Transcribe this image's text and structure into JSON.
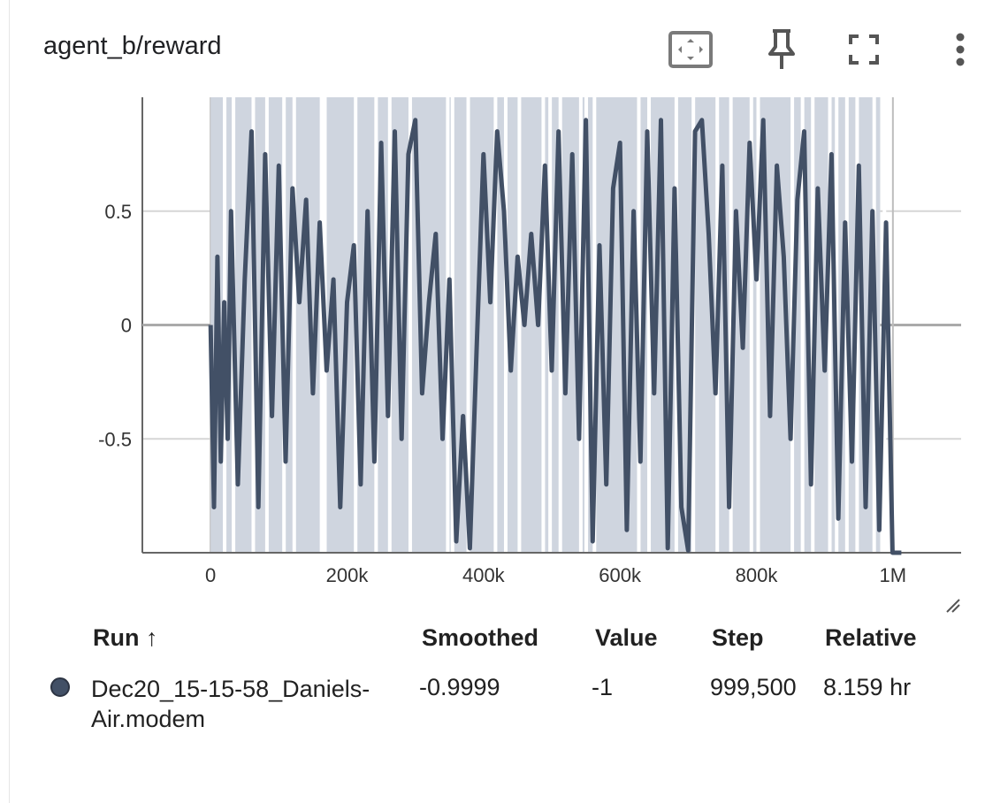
{
  "card": {
    "title": "agent_b/reward",
    "toolbar": {
      "fit_domain": "fit-domain-icon",
      "pin": "pin-icon",
      "fullscreen": "fullscreen-icon",
      "more": "more-vert-icon"
    }
  },
  "chart_data": {
    "type": "line",
    "title": "agent_b/reward",
    "xlabel": "",
    "ylabel": "",
    "xlim": [
      -100000,
      1100000
    ],
    "ylim": [
      -1,
      1
    ],
    "x_ticks": [
      "0",
      "200k",
      "400k",
      "600k",
      "800k",
      "1M"
    ],
    "x_tick_values": [
      0,
      200000,
      400000,
      600000,
      800000,
      1000000
    ],
    "y_ticks": [
      "0.5",
      "0",
      "-0.5"
    ],
    "y_tick_values": [
      0.5,
      0,
      -0.5
    ],
    "grid": true,
    "colors": {
      "line": "#425066",
      "band": "#cfd5df"
    },
    "series": [
      {
        "name": "Dec20_15-15-58_Daniels-Air.modem",
        "x": [
          0,
          5000,
          10000,
          15000,
          20000,
          25000,
          30000,
          40000,
          50000,
          60000,
          70000,
          80000,
          90000,
          100000,
          110000,
          120000,
          130000,
          140000,
          150000,
          160000,
          170000,
          180000,
          190000,
          200000,
          210000,
          220000,
          230000,
          240000,
          250000,
          260000,
          270000,
          280000,
          290000,
          300000,
          310000,
          320000,
          330000,
          340000,
          350000,
          360000,
          370000,
          380000,
          390000,
          400000,
          410000,
          420000,
          430000,
          440000,
          450000,
          460000,
          470000,
          480000,
          490000,
          500000,
          510000,
          520000,
          530000,
          540000,
          550000,
          560000,
          570000,
          580000,
          590000,
          600000,
          610000,
          620000,
          630000,
          640000,
          650000,
          660000,
          670000,
          680000,
          690000,
          700000,
          710000,
          720000,
          730000,
          740000,
          750000,
          760000,
          770000,
          780000,
          790000,
          800000,
          810000,
          820000,
          830000,
          840000,
          850000,
          860000,
          870000,
          880000,
          890000,
          900000,
          910000,
          920000,
          930000,
          940000,
          950000,
          960000,
          970000,
          980000,
          990000,
          999500
        ],
        "y": [
          0,
          -0.8,
          0.3,
          -0.6,
          0.1,
          -0.5,
          0.5,
          -0.7,
          0.2,
          0.85,
          -0.8,
          0.75,
          -0.4,
          0.7,
          -0.6,
          0.6,
          0.1,
          0.55,
          -0.3,
          0.45,
          -0.2,
          0.2,
          -0.8,
          0.1,
          0.35,
          -0.7,
          0.5,
          -0.6,
          0.8,
          -0.4,
          0.85,
          -0.5,
          0.75,
          0.9,
          -0.3,
          0.1,
          0.4,
          -0.5,
          0.2,
          -0.95,
          -0.4,
          -0.98,
          -0.1,
          0.75,
          0.1,
          0.85,
          0.5,
          -0.2,
          0.3,
          0.0,
          0.4,
          0.0,
          0.7,
          -0.2,
          0.85,
          -0.3,
          0.75,
          -0.5,
          0.9,
          -0.95,
          0.35,
          -0.7,
          0.6,
          0.8,
          -0.9,
          0.5,
          -0.6,
          0.85,
          -0.3,
          0.9,
          -0.98,
          0.6,
          -0.8,
          -0.99,
          0.85,
          0.9,
          0.4,
          -0.3,
          0.7,
          -0.8,
          0.5,
          -0.1,
          0.8,
          0.2,
          0.9,
          -0.4,
          0.7,
          0.3,
          -0.5,
          0.55,
          0.85,
          -0.7,
          0.6,
          -0.2,
          0.75,
          -0.85,
          0.45,
          -0.6,
          0.7,
          -0.8,
          0.5,
          -0.9,
          0.45,
          -0.9999
        ]
      }
    ]
  },
  "table": {
    "headers": {
      "run": "Run ↑",
      "smoothed": "Smoothed",
      "value": "Value",
      "step": "Step",
      "relative": "Relative"
    },
    "rows": [
      {
        "run": "Dec20_15-15-58_Daniels-Air.modem",
        "smoothed": "-0.9999",
        "value": "-1",
        "step": "999,500",
        "relative": "8.159 hr",
        "color": "#425066"
      }
    ]
  }
}
